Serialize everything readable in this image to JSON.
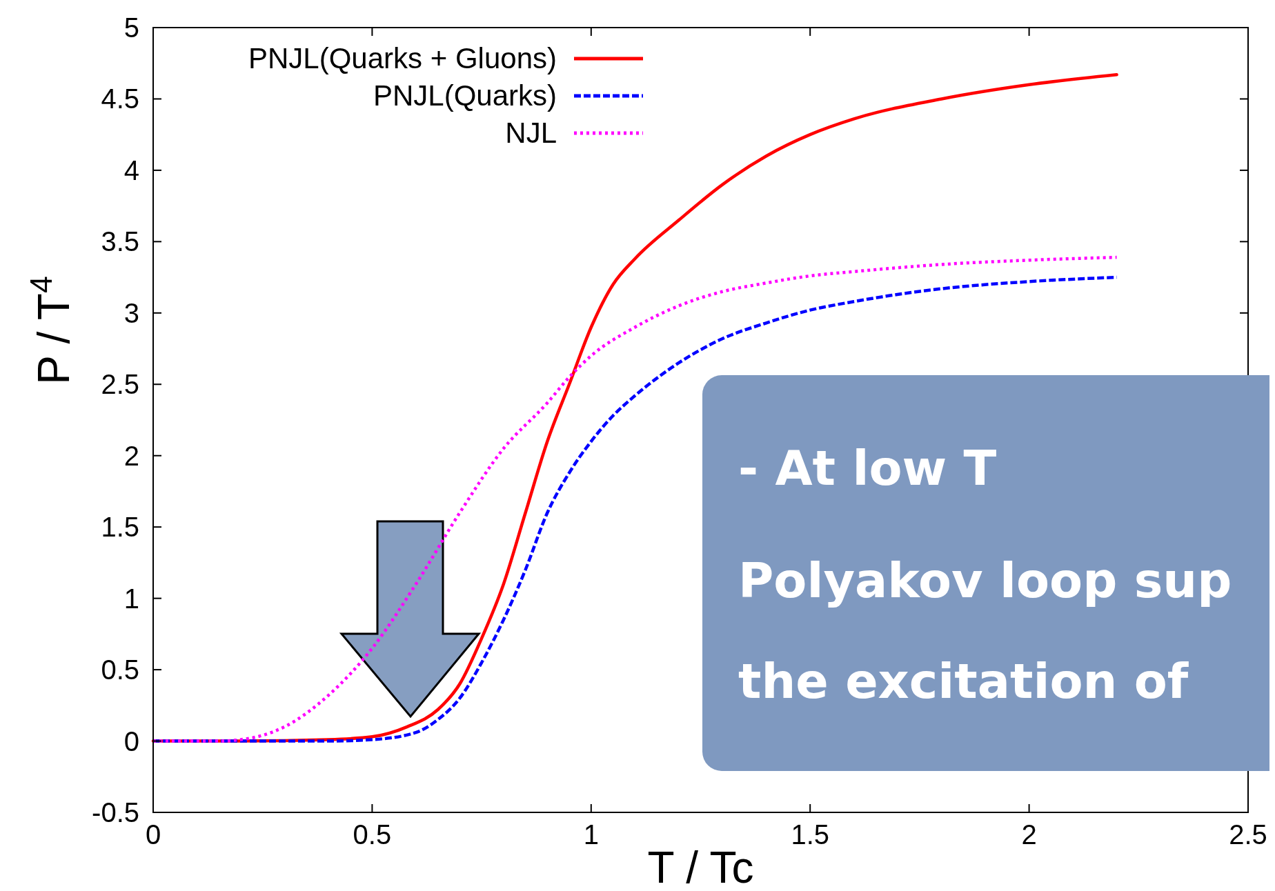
{
  "chart_data": {
    "type": "line",
    "xlabel": "T / Tc",
    "ylabel": "P / T$^{4}$",
    "xlim": [
      0,
      2.5
    ],
    "ylim": [
      -0.5,
      5
    ],
    "xticks": [
      0,
      0.5,
      1,
      1.5,
      2,
      2.5
    ],
    "yticks": [
      -0.5,
      0,
      0.5,
      1,
      1.5,
      2,
      2.5,
      3,
      3.5,
      4,
      4.5,
      5
    ],
    "legend": "top left",
    "grid": false,
    "series": [
      {
        "name": "PNJL(Quarks + Gluons)",
        "color": "#ff0000",
        "line_style": "solid",
        "x": [
          0,
          0.2,
          0.4,
          0.5,
          0.58,
          0.65,
          0.7,
          0.75,
          0.8,
          0.85,
          0.9,
          0.95,
          1,
          1.05,
          1.1,
          1.2,
          1.3,
          1.4,
          1.5,
          1.6,
          1.8,
          2,
          2.2
        ],
        "values": [
          0,
          0,
          0.01,
          0.03,
          0.1,
          0.22,
          0.4,
          0.72,
          1.1,
          1.6,
          2.1,
          2.5,
          2.9,
          3.2,
          3.38,
          3.65,
          3.9,
          4.1,
          4.25,
          4.36,
          4.5,
          4.6,
          4.67
        ]
      },
      {
        "name": "PNJL(Quarks)",
        "color": "#0000ff",
        "line_style": "dashed",
        "x": [
          0,
          0.2,
          0.4,
          0.5,
          0.6,
          0.65,
          0.7,
          0.75,
          0.8,
          0.85,
          0.9,
          0.95,
          1,
          1.05,
          1.1,
          1.2,
          1.3,
          1.4,
          1.5,
          1.6,
          1.8,
          2,
          2.2
        ],
        "values": [
          0,
          0,
          0,
          0.01,
          0.06,
          0.15,
          0.3,
          0.55,
          0.85,
          1.2,
          1.6,
          1.88,
          2.1,
          2.28,
          2.42,
          2.65,
          2.82,
          2.93,
          3.02,
          3.08,
          3.17,
          3.22,
          3.25
        ]
      },
      {
        "name": "NJL",
        "color": "#ff00ff",
        "line_style": "dotted",
        "x": [
          0,
          0.15,
          0.2,
          0.25,
          0.3,
          0.4,
          0.5,
          0.6,
          0.7,
          0.8,
          0.9,
          0.95,
          1,
          1.1,
          1.2,
          1.3,
          1.4,
          1.5,
          1.6,
          1.8,
          2,
          2.2
        ],
        "values": [
          0,
          0,
          0.01,
          0.04,
          0.1,
          0.32,
          0.65,
          1.1,
          1.6,
          2.05,
          2.37,
          2.55,
          2.7,
          2.9,
          3.05,
          3.15,
          3.21,
          3.26,
          3.29,
          3.34,
          3.37,
          3.39
        ]
      }
    ],
    "annotations": [
      "- At low T",
      "Polyakov loop sup",
      "the excitation of"
    ]
  }
}
